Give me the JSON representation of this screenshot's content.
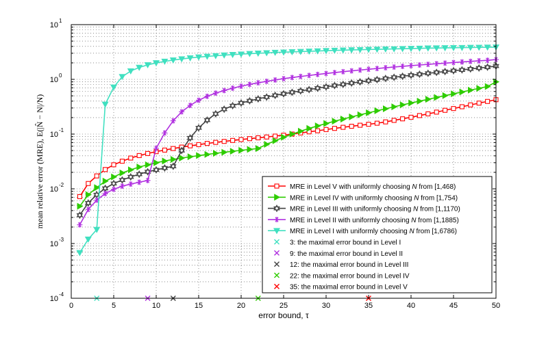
{
  "chart_data": {
    "type": "line",
    "xlabel": "error bound, τ",
    "ylabel": "mean relative error (MRE), E(|N̂ − N|/N)",
    "xlim": [
      0,
      50
    ],
    "ylim": [
      0.0001,
      10
    ],
    "yscale": "log",
    "grid": true,
    "legend_position": "bottom-right",
    "x_ticks": [
      "0",
      "5",
      "10",
      "15",
      "20",
      "25",
      "30",
      "35",
      "40",
      "45",
      "50"
    ],
    "y_ticks": [
      {
        "base": "10",
        "exp": "-4"
      },
      {
        "base": "10",
        "exp": "-3"
      },
      {
        "base": "10",
        "exp": "-2"
      },
      {
        "base": "10",
        "exp": "-1"
      },
      {
        "base": "10",
        "exp": "0"
      },
      {
        "base": "10",
        "exp": "1"
      }
    ],
    "series": [
      {
        "name": "MRE in Level V with uniformly choosing N from [1,468)",
        "name_parts": [
          "MRE in Level V with uniformly choosing ",
          "N",
          " from [1,468)"
        ],
        "color": "#ff0000",
        "marker": "square",
        "x": [
          1,
          2,
          3,
          4,
          5,
          6,
          7,
          8,
          9,
          10,
          11,
          12,
          13,
          14,
          15,
          16,
          17,
          18,
          19,
          20,
          21,
          22,
          23,
          24,
          25,
          26,
          27,
          28,
          29,
          30,
          31,
          32,
          33,
          34,
          35,
          36,
          37,
          38,
          39,
          40,
          41,
          42,
          43,
          44,
          45,
          46,
          47,
          48,
          49,
          50
        ],
        "y": [
          0.0072,
          0.0125,
          0.0172,
          0.0225,
          0.0275,
          0.032,
          0.0365,
          0.0405,
          0.0442,
          0.0478,
          0.051,
          0.0545,
          0.0578,
          0.061,
          0.0642,
          0.0675,
          0.0705,
          0.0735,
          0.0765,
          0.0795,
          0.0825,
          0.0855,
          0.0885,
          0.0918,
          0.0955,
          0.1,
          0.105,
          0.11,
          0.115,
          0.121,
          0.127,
          0.133,
          0.139,
          0.145,
          0.151,
          0.158,
          0.167,
          0.178,
          0.19,
          0.203,
          0.218,
          0.234,
          0.252,
          0.272,
          0.293,
          0.316,
          0.341,
          0.368,
          0.395,
          0.425
        ]
      },
      {
        "name": "MRE in Level IV with uniformly choosing N from [1,754)",
        "name_parts": [
          "MRE in Level IV with uniformly choosing ",
          "N",
          " from [1,754)"
        ],
        "color": "#2ecc00",
        "marker": "triangle-right",
        "x": [
          1,
          2,
          3,
          4,
          5,
          6,
          7,
          8,
          9,
          10,
          11,
          12,
          13,
          14,
          15,
          16,
          17,
          18,
          19,
          20,
          21,
          22,
          23,
          24,
          25,
          26,
          27,
          28,
          29,
          30,
          31,
          32,
          33,
          34,
          35,
          36,
          37,
          38,
          39,
          40,
          41,
          42,
          43,
          44,
          45,
          46,
          47,
          48,
          49,
          50
        ],
        "y": [
          0.0048,
          0.0078,
          0.0105,
          0.0138,
          0.0165,
          0.0195,
          0.0222,
          0.025,
          0.0275,
          0.03,
          0.0322,
          0.0345,
          0.0365,
          0.0385,
          0.0405,
          0.0425,
          0.0445,
          0.0465,
          0.0485,
          0.0505,
          0.0525,
          0.0545,
          0.065,
          0.0755,
          0.0875,
          0.1,
          0.113,
          0.127,
          0.141,
          0.156,
          0.172,
          0.188,
          0.206,
          0.225,
          0.245,
          0.267,
          0.29,
          0.315,
          0.342,
          0.37,
          0.4,
          0.432,
          0.467,
          0.505,
          0.545,
          0.588,
          0.635,
          0.685,
          0.74,
          0.9
        ]
      },
      {
        "name": "MRE in Level III with uniformly choosing N from [1,1170)",
        "name_parts": [
          "MRE in Level III with uniformly choosing ",
          "N",
          " from [1,1170)"
        ],
        "color": "#404040",
        "marker": "hexagram",
        "x": [
          1,
          2,
          3,
          4,
          5,
          6,
          7,
          8,
          9,
          10,
          11,
          12,
          13,
          14,
          15,
          16,
          17,
          18,
          19,
          20,
          21,
          22,
          23,
          24,
          25,
          26,
          27,
          28,
          29,
          30,
          31,
          32,
          33,
          34,
          35,
          36,
          37,
          38,
          39,
          40,
          41,
          42,
          43,
          44,
          45,
          46,
          47,
          48,
          49,
          50
        ],
        "y": [
          0.0033,
          0.0055,
          0.0078,
          0.0102,
          0.0125,
          0.0145,
          0.0165,
          0.0185,
          0.0205,
          0.0222,
          0.024,
          0.0258,
          0.05,
          0.085,
          0.13,
          0.18,
          0.235,
          0.285,
          0.33,
          0.37,
          0.405,
          0.44,
          0.475,
          0.51,
          0.545,
          0.58,
          0.615,
          0.65,
          0.69,
          0.73,
          0.77,
          0.81,
          0.855,
          0.9,
          0.945,
          0.99,
          1.04,
          1.09,
          1.14,
          1.19,
          1.24,
          1.29,
          1.34,
          1.39,
          1.44,
          1.49,
          1.55,
          1.61,
          1.67,
          1.75
        ]
      },
      {
        "name": "MRE in Level II with uniformly choosing N from [1,1885)",
        "name_parts": [
          "MRE in Level II with uniformly choosing ",
          "N",
          " from [1,1885)"
        ],
        "color": "#b030e0",
        "marker": "asterisk",
        "x": [
          1,
          2,
          3,
          4,
          5,
          6,
          7,
          8,
          9,
          10,
          11,
          12,
          13,
          14,
          15,
          16,
          17,
          18,
          19,
          20,
          21,
          22,
          23,
          24,
          25,
          26,
          27,
          28,
          29,
          30,
          31,
          32,
          33,
          34,
          35,
          36,
          37,
          38,
          39,
          40,
          41,
          42,
          43,
          44,
          45,
          46,
          47,
          48,
          49,
          50
        ],
        "y": [
          0.0022,
          0.0042,
          0.0062,
          0.0082,
          0.0098,
          0.0112,
          0.0122,
          0.0132,
          0.0142,
          0.055,
          0.105,
          0.175,
          0.255,
          0.335,
          0.415,
          0.49,
          0.56,
          0.625,
          0.69,
          0.75,
          0.81,
          0.865,
          0.92,
          0.975,
          1.03,
          1.08,
          1.13,
          1.18,
          1.23,
          1.28,
          1.33,
          1.38,
          1.43,
          1.48,
          1.53,
          1.58,
          1.63,
          1.68,
          1.73,
          1.78,
          1.83,
          1.88,
          1.93,
          1.98,
          2.03,
          2.08,
          2.13,
          2.18,
          2.23,
          2.3
        ]
      },
      {
        "name": "MRE in Level I with uniformly choosing N from [1,6786)",
        "name_parts": [
          "MRE in Level I with uniformly choosing ",
          "N",
          " from [1,6786)"
        ],
        "color": "#40e0c0",
        "marker": "triangle-down",
        "x": [
          1,
          2,
          3,
          4,
          5,
          6,
          7,
          8,
          9,
          10,
          11,
          12,
          13,
          14,
          15,
          16,
          17,
          18,
          19,
          20,
          21,
          22,
          23,
          24,
          25,
          26,
          27,
          28,
          29,
          30,
          31,
          32,
          33,
          34,
          35,
          36,
          37,
          38,
          39,
          40,
          41,
          42,
          43,
          44,
          45,
          46,
          47,
          48,
          49,
          50
        ],
        "y": [
          0.00068,
          0.0012,
          0.0018,
          0.35,
          0.72,
          1.12,
          1.42,
          1.65,
          1.84,
          2.0,
          2.13,
          2.25,
          2.36,
          2.46,
          2.55,
          2.63,
          2.7,
          2.77,
          2.83,
          2.89,
          2.95,
          3.0,
          3.05,
          3.1,
          3.14,
          3.18,
          3.22,
          3.26,
          3.3,
          3.34,
          3.38,
          3.42,
          3.45,
          3.48,
          3.51,
          3.54,
          3.57,
          3.6,
          3.63,
          3.66,
          3.69,
          3.72,
          3.74,
          3.76,
          3.78,
          3.8,
          3.82,
          3.84,
          3.86,
          3.88
        ]
      }
    ],
    "markers": [
      {
        "x": 3,
        "y": 0.0001,
        "color": "#40e0c0",
        "label": "3: the maximal error bound in Level I"
      },
      {
        "x": 9,
        "y": 0.0001,
        "color": "#b030e0",
        "label": "9: the maximal error bound in Level II"
      },
      {
        "x": 12,
        "y": 0.0001,
        "color": "#404040",
        "label": "12: the maximal error bound in Level III"
      },
      {
        "x": 22,
        "y": 0.0001,
        "color": "#2ecc00",
        "label": "22: the maximal error bound in Level IV"
      },
      {
        "x": 35,
        "y": 0.0001,
        "color": "#ff0000",
        "label": "35: the maximal error bound in Level V"
      }
    ]
  }
}
